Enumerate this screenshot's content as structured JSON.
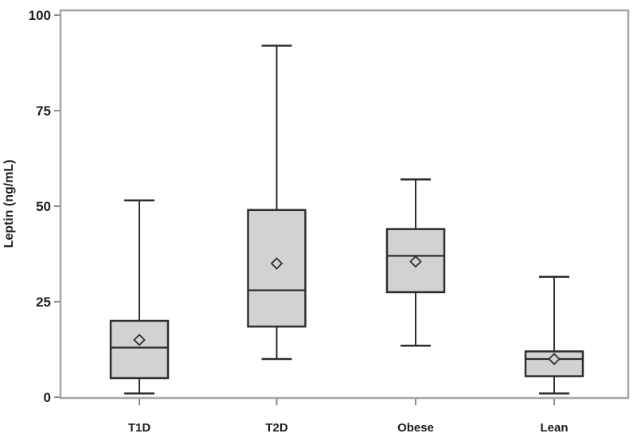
{
  "chart_data": {
    "type": "boxplot",
    "title": "",
    "xlabel": "",
    "ylabel": "Leptin (ng/mL)",
    "ylim": [
      0,
      100
    ],
    "yticks": [
      0,
      25,
      50,
      75,
      100
    ],
    "grid": false,
    "legend": "none",
    "mean_marker": "open-diamond",
    "categories": [
      "T1D",
      "T2D",
      "Obese",
      "Lean"
    ],
    "series": [
      {
        "name": "T1D",
        "min": 1,
        "q1": 5,
        "median": 13,
        "mean": 15,
        "q3": 20,
        "max": 51.5
      },
      {
        "name": "T2D",
        "min": 10,
        "q1": 18.5,
        "median": 28,
        "mean": 35,
        "q3": 49,
        "max": 92
      },
      {
        "name": "Obese",
        "min": 13.5,
        "q1": 27.5,
        "median": 37,
        "mean": 35.5,
        "q3": 44,
        "max": 57
      },
      {
        "name": "Lean",
        "min": 1,
        "q1": 5.5,
        "median": 10,
        "mean": 10,
        "q3": 12,
        "max": 31.5
      }
    ],
    "colors": {
      "background": "#ffffff",
      "box_fill": "#d2d2d2",
      "stroke": "#2e2e2e",
      "frame": "#a6a6a6",
      "tick": "#8a8a8a",
      "text": "#1c1c1c"
    }
  }
}
